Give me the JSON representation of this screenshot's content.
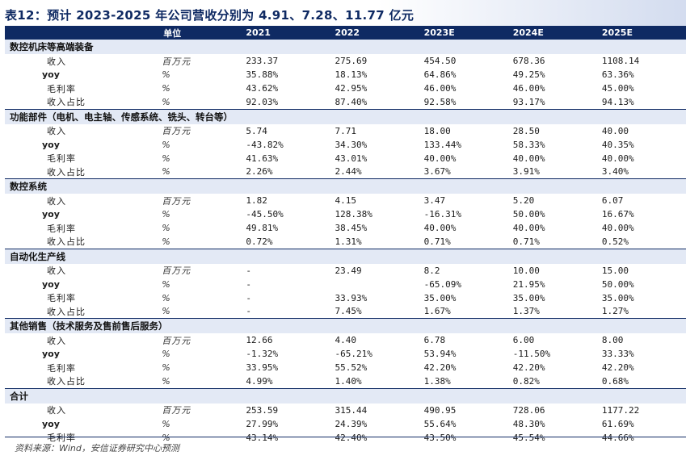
{
  "title": "表12：预计 2023-2025 年公司营收分别为 4.91、7.28、11.77 亿元",
  "header": [
    "",
    "单位",
    "2021",
    "2022",
    "2023E",
    "2024E",
    "2025E"
  ],
  "sections": [
    {
      "name": "数控机床等高端装备",
      "rows": [
        {
          "label": "收入",
          "unit": "百万元",
          "values": [
            "233.37",
            "275.69",
            "454.50",
            "678.36",
            "1108.14"
          ]
        },
        {
          "label": "yoy",
          "unit": "%",
          "values": [
            "35.88%",
            "18.13%",
            "64.86%",
            "49.25%",
            "63.36%"
          ]
        },
        {
          "label": "毛利率",
          "unit": "%",
          "values": [
            "43.62%",
            "42.95%",
            "46.00%",
            "46.00%",
            "45.00%"
          ]
        },
        {
          "label": "收入占比",
          "unit": "%",
          "values": [
            "92.03%",
            "87.40%",
            "92.58%",
            "93.17%",
            "94.13%"
          ]
        }
      ]
    },
    {
      "name": "功能部件（电机、电主轴、传感系统、铣头、转台等）",
      "rows": [
        {
          "label": "收入",
          "unit": "百万元",
          "values": [
            "5.74",
            "7.71",
            "18.00",
            "28.50",
            "40.00"
          ]
        },
        {
          "label": "yoy",
          "unit": "%",
          "values": [
            "-43.82%",
            "34.30%",
            "133.44%",
            "58.33%",
            "40.35%"
          ]
        },
        {
          "label": "毛利率",
          "unit": "%",
          "values": [
            "41.63%",
            "43.01%",
            "40.00%",
            "40.00%",
            "40.00%"
          ]
        },
        {
          "label": "收入占比",
          "unit": "%",
          "values": [
            "2.26%",
            "2.44%",
            "3.67%",
            "3.91%",
            "3.40%"
          ]
        }
      ]
    },
    {
      "name": "数控系统",
      "rows": [
        {
          "label": "收入",
          "unit": "百万元",
          "values": [
            "1.82",
            "4.15",
            "3.47",
            "5.20",
            "6.07"
          ]
        },
        {
          "label": "yoy",
          "unit": "%",
          "values": [
            "-45.50%",
            "128.38%",
            "-16.31%",
            "50.00%",
            "16.67%"
          ]
        },
        {
          "label": "毛利率",
          "unit": "%",
          "values": [
            "49.81%",
            "38.45%",
            "40.00%",
            "40.00%",
            "40.00%"
          ]
        },
        {
          "label": "收入占比",
          "unit": "%",
          "values": [
            "0.72%",
            "1.31%",
            "0.71%",
            "0.71%",
            "0.52%"
          ]
        }
      ]
    },
    {
      "name": "自动化生产线",
      "rows": [
        {
          "label": "收入",
          "unit": "百万元",
          "values": [
            "-",
            "23.49",
            "8.2",
            "10.00",
            "15.00"
          ]
        },
        {
          "label": "yoy",
          "unit": "%",
          "values": [
            "-",
            "",
            "-65.09%",
            "21.95%",
            "50.00%"
          ]
        },
        {
          "label": "毛利率",
          "unit": "%",
          "values": [
            "-",
            "33.93%",
            "35.00%",
            "35.00%",
            "35.00%"
          ]
        },
        {
          "label": "收入占比",
          "unit": "%",
          "values": [
            "-",
            "7.45%",
            "1.67%",
            "1.37%",
            "1.27%"
          ]
        }
      ]
    },
    {
      "name": "其他销售（技术服务及售前售后服务）",
      "rows": [
        {
          "label": "收入",
          "unit": "百万元",
          "values": [
            "12.66",
            "4.40",
            "6.78",
            "6.00",
            "8.00"
          ]
        },
        {
          "label": "yoy",
          "unit": "%",
          "values": [
            "-1.32%",
            "-65.21%",
            "53.94%",
            "-11.50%",
            "33.33%"
          ]
        },
        {
          "label": "毛利率",
          "unit": "%",
          "values": [
            "33.95%",
            "55.52%",
            "42.20%",
            "42.20%",
            "42.20%"
          ]
        },
        {
          "label": "收入占比",
          "unit": "%",
          "values": [
            "4.99%",
            "1.40%",
            "1.38%",
            "0.82%",
            "0.68%"
          ]
        }
      ]
    },
    {
      "name": "合计",
      "rows": [
        {
          "label": "收入",
          "unit": "百万元",
          "values": [
            "253.59",
            "315.44",
            "490.95",
            "728.06",
            "1177.22"
          ]
        },
        {
          "label": "yoy",
          "unit": "%",
          "values": [
            "27.99%",
            "24.39%",
            "55.64%",
            "48.30%",
            "61.69%"
          ]
        },
        {
          "label": "毛利率",
          "unit": "%",
          "values": [
            "43.14%",
            "42.40%",
            "43.50%",
            "45.54%",
            "44.66%"
          ]
        }
      ]
    }
  ],
  "source": "资料来源：Wind，安信证券研究中心预测"
}
